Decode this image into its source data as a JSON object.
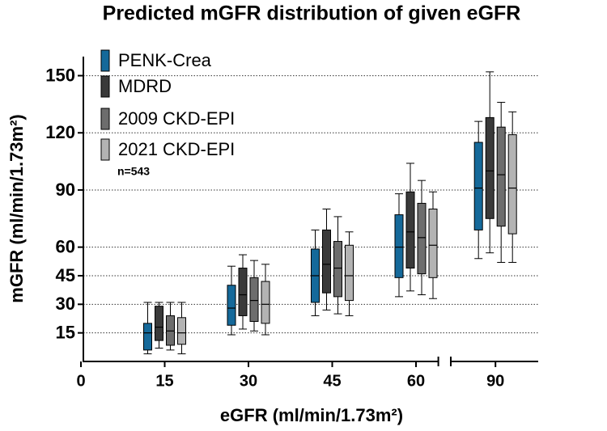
{
  "chart_data": {
    "type": "box",
    "title": "Predicted mGFR distribution of given eGFR",
    "x_label": "eGFR (ml/min/1.73m²)",
    "y_label": "mGFR (ml/min/1.73m²)",
    "annotation": "n=543",
    "x": [
      15,
      30,
      45,
      60,
      90
    ],
    "xlim": [
      [
        0,
        64
      ],
      [
        82,
        97.7
      ]
    ],
    "xticks": [
      0,
      15,
      30,
      45,
      60,
      90
    ],
    "ylim": [
      0,
      160
    ],
    "yticks": [
      15,
      30,
      45,
      60,
      90,
      120,
      150
    ],
    "grid": true,
    "legend": "upper left",
    "series": [
      {
        "name": "PENK-Crea",
        "color": "#15699a",
        "whisker_low": [
          4,
          14,
          24,
          34,
          54
        ],
        "q1": [
          6,
          19,
          31,
          44,
          69
        ],
        "median": [
          15,
          28,
          45,
          60,
          91
        ],
        "q3": [
          20,
          40,
          59,
          77,
          115
        ],
        "whisker_high": [
          31,
          50,
          69,
          88,
          126
        ]
      },
      {
        "name": "MDRD",
        "color": "#3a3a3a",
        "whisker_low": [
          7,
          17,
          27,
          37,
          57
        ],
        "q1": [
          11,
          24,
          36,
          49,
          75
        ],
        "median": [
          18,
          35,
          51,
          68,
          100
        ],
        "q3": [
          29,
          49,
          69,
          89,
          128
        ],
        "whisker_high": [
          31,
          56,
          80,
          104,
          152
        ]
      },
      {
        "name": "2009 CKD-EPI",
        "color": "#6d6d6d",
        "whisker_low": [
          6,
          16,
          25,
          35,
          52
        ],
        "q1": [
          8.5,
          21,
          34,
          46,
          71
        ],
        "median": [
          16,
          32,
          49,
          65,
          98
        ],
        "q3": [
          24,
          44,
          63,
          83,
          123
        ],
        "whisker_high": [
          31,
          53,
          76,
          95,
          136
        ]
      },
      {
        "name": "2021 CKD-EPI",
        "color": "#b3b3b3",
        "whisker_low": [
          4,
          14,
          24,
          33,
          52
        ],
        "q1": [
          9,
          20,
          32,
          44,
          67
        ],
        "median": [
          15,
          30,
          45,
          61,
          91
        ],
        "q3": [
          23,
          42,
          61,
          80,
          119
        ],
        "whisker_high": [
          31,
          51,
          68,
          89,
          131
        ]
      }
    ]
  }
}
